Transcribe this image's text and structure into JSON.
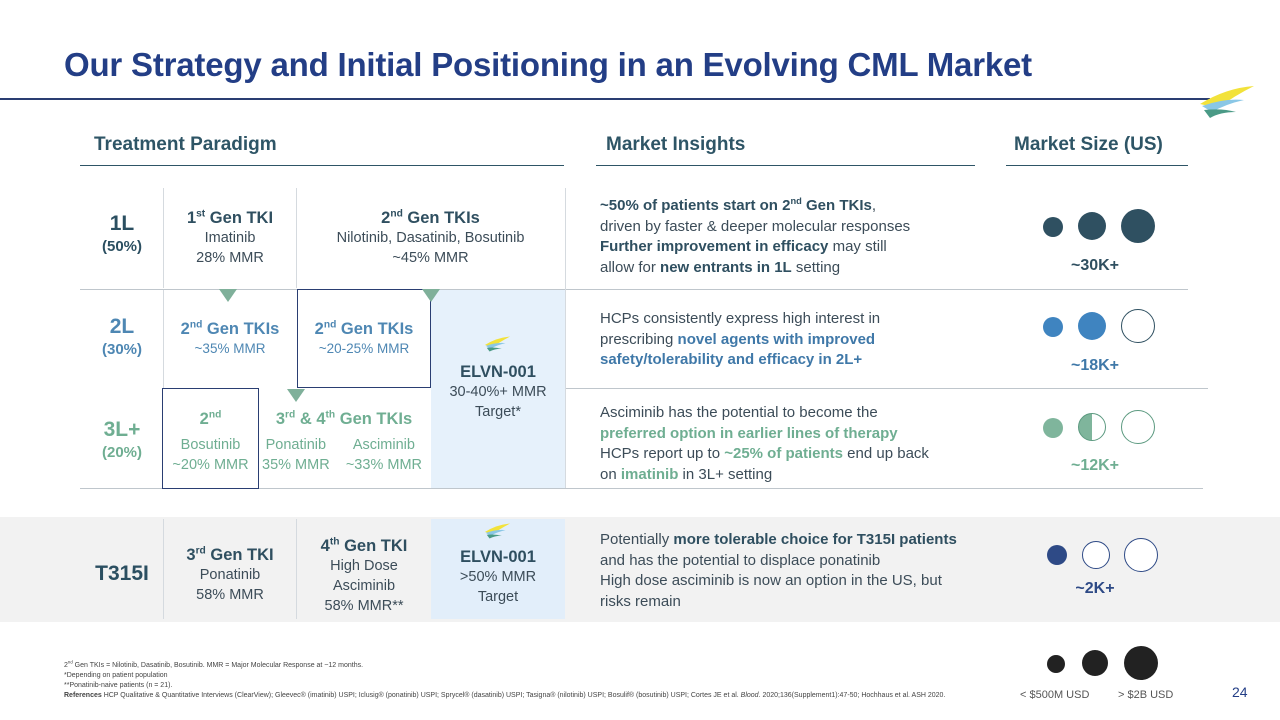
{
  "title": "Our Strategy and Initial Positioning in an Evolving CML Market",
  "headers": {
    "paradigm": "Treatment Paradigm",
    "insights": "Market Insights",
    "size": "Market Size (US)"
  },
  "rows": {
    "l1": {
      "label": "1L",
      "pct": "(50%)"
    },
    "l2": {
      "label": "2L",
      "pct": "(30%)"
    },
    "l3": {
      "label": "3L+",
      "pct": "(20%)"
    },
    "t315": {
      "label": "T315I"
    }
  },
  "cells": {
    "r1c1": {
      "gen": "1",
      "sup": "st",
      "rest": " Gen TKI",
      "l1": "Imatinib",
      "l2": "28% MMR"
    },
    "r1c2": {
      "gen": "2",
      "sup": "nd",
      "rest": " Gen TKIs",
      "l1": "Nilotinib, Dasatinib, Bosutinib",
      "l2": "~45% MMR"
    },
    "r2c1": {
      "gen": "2",
      "sup": "nd",
      "rest": " Gen TKIs",
      "l1": "~35% MMR"
    },
    "r2c2": {
      "gen": "2",
      "sup": "nd",
      "rest": " Gen TKIs",
      "l1": "~20-25% MMR"
    },
    "r3c1": {
      "gen": "2",
      "sup": "nd",
      "l1": "Bosutinib",
      "l2": "~20% MMR"
    },
    "r3c2": {
      "a": "3",
      "asup": "rd",
      "mid": " & 4",
      "bsup": "th",
      "rest": " Gen TKIs",
      "p1": "Ponatinib",
      "p2": "35% MMR",
      "a1": "Asciminib",
      "a2": "~33% MMR"
    },
    "elvn": {
      "name": "ELVN-001",
      "l1": "30-40%+ MMR",
      "l2": "Target*"
    },
    "t1": {
      "gen": "3",
      "sup": "rd",
      "rest": " Gen TKI",
      "l1": "Ponatinib",
      "l2": "58% MMR"
    },
    "t2": {
      "gen": "4",
      "sup": "th",
      "rest": " Gen TKI",
      "l1": "High Dose",
      "l2": "Asciminib",
      "l3": "58% MMR**"
    },
    "telvn": {
      "name": "ELVN-001",
      "l1": ">50% MMR",
      "l2": "Target"
    }
  },
  "insights": {
    "i1": {
      "a": "~50% of patients start on 2",
      "asup": "nd",
      "b": " Gen TKIs",
      "c": ",",
      "d": "driven by faster & deeper molecular responses",
      "e": "Further improvement in efficacy",
      "f": " may still",
      "g": "allow for ",
      "h": "new entrants in 1L",
      "i": " setting"
    },
    "i2": {
      "a": "HCPs consistently express high interest in",
      "b": "prescribing ",
      "c": "novel agents with improved",
      "d": "safety/tolerability and efficacy in 2L+"
    },
    "i3": {
      "a": "Asciminib has the potential to become the",
      "b": "preferred option in earlier lines of therapy",
      "c": "HCPs report up to ",
      "d": "~25% of patients",
      "e": " end up back",
      "f": "on ",
      "g": "imatinib",
      "h": " in 3L+ setting"
    },
    "i4": {
      "a": "Potentially ",
      "b": "more tolerable choice for T315I patients",
      "c": "and has the potential to displace ponatinib",
      "d": "High dose asciminib is now an option in the US, but",
      "e": "risks remain"
    }
  },
  "sizes": {
    "s1": "~30K+",
    "s2": "~18K+",
    "s3": "~12K+",
    "s4": "~2K+"
  },
  "legend": {
    "low": "< $500M USD",
    "high": "> $2B USD"
  },
  "footnotes": {
    "f1a": "2",
    "f1sup": "nd",
    "f1b": " Gen TKIs = Nilotinib, Dasatinib, Bosutinib. MMR = Major Molecular Response at ~12 months.",
    "f2": "*Depending on patient population",
    "f3": "**Ponatinib-naive patients (n = 21).",
    "f4a": "References",
    "f4b": " HCP Qualitative & Quantitative Interviews (ClearView); Gleevec® (imatinib) USPI; Iclusig® (ponatinib) USPI; Sprycel® (dasatinib) USPI; Tasigna® (nilotinib) USPI; Bosulif® (bosutinib) USPI; Cortes JE et al. ",
    "f4c": "Blood.",
    "f4d": " 2020;136(Supplement1):47-50; Hochhaus et al. ASH 2020."
  },
  "page_number": "24",
  "colors": {
    "title": "#233e86",
    "teal": "#2f4f60",
    "green": "#6fae92",
    "blue": "#3f78a8"
  }
}
